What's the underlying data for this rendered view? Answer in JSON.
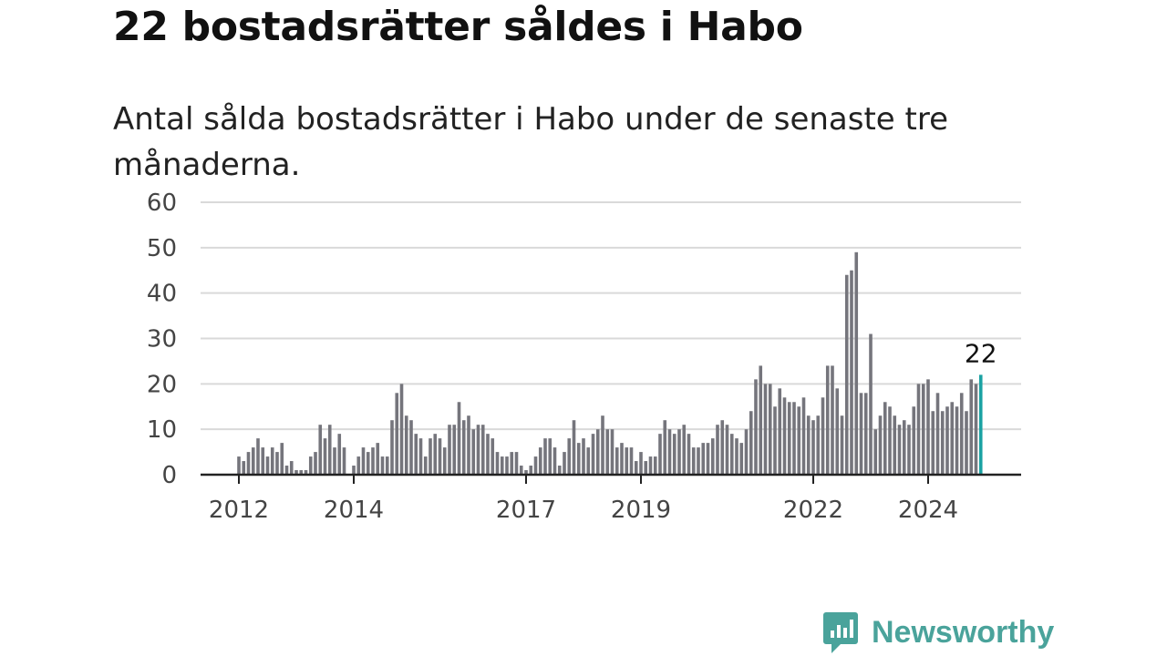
{
  "title": "22 bostadsrätter såldes i Habo",
  "subtitle": "Antal sålda bostadsrätter i Habo under de senaste tre månaderna.",
  "brand": {
    "name": "Newsworthy",
    "icon": "newsworthy-logo-icon",
    "color": "#4aa39b"
  },
  "chart_data": {
    "type": "bar",
    "title": "",
    "xlabel": "",
    "ylabel": "",
    "ylim": [
      0,
      60
    ],
    "y_ticks": [
      0,
      10,
      20,
      30,
      40,
      50,
      60
    ],
    "x_tick_labels": [
      {
        "label": "2012",
        "index": 0
      },
      {
        "label": "2014",
        "index": 24
      },
      {
        "label": "2017",
        "index": 60
      },
      {
        "label": "2019",
        "index": 84
      },
      {
        "label": "2022",
        "index": 120
      },
      {
        "label": "2024",
        "index": 144
      }
    ],
    "start": "2012-01",
    "frequency": "monthly",
    "bar_color": "#75757c",
    "highlight_color": "#1ba2a3",
    "highlight_label": "22",
    "grid": true,
    "values": [
      4,
      3,
      5,
      6,
      8,
      6,
      4,
      6,
      5,
      7,
      2,
      3,
      1,
      1,
      1,
      4,
      5,
      11,
      8,
      11,
      6,
      9,
      6,
      0,
      2,
      4,
      6,
      5,
      6,
      7,
      4,
      4,
      12,
      18,
      20,
      13,
      12,
      9,
      8,
      4,
      8,
      9,
      8,
      6,
      11,
      11,
      16,
      12,
      13,
      10,
      11,
      11,
      9,
      8,
      5,
      4,
      4,
      5,
      5,
      2,
      1,
      2,
      4,
      6,
      8,
      8,
      6,
      2,
      5,
      8,
      12,
      7,
      8,
      6,
      9,
      10,
      13,
      10,
      10,
      6,
      7,
      6,
      6,
      3,
      5,
      3,
      4,
      4,
      9,
      12,
      10,
      9,
      10,
      11,
      9,
      6,
      6,
      7,
      7,
      8,
      11,
      12,
      11,
      9,
      8,
      7,
      10,
      14,
      21,
      24,
      20,
      20,
      15,
      19,
      17,
      16,
      16,
      15,
      17,
      13,
      12,
      13,
      17,
      24,
      24,
      19,
      13,
      44,
      45,
      49,
      18,
      18,
      31,
      10,
      13,
      16,
      15,
      13,
      11,
      12,
      11,
      15,
      20,
      20,
      21,
      14,
      18,
      14,
      15,
      16,
      15,
      18,
      14,
      21,
      20,
      22
    ]
  }
}
